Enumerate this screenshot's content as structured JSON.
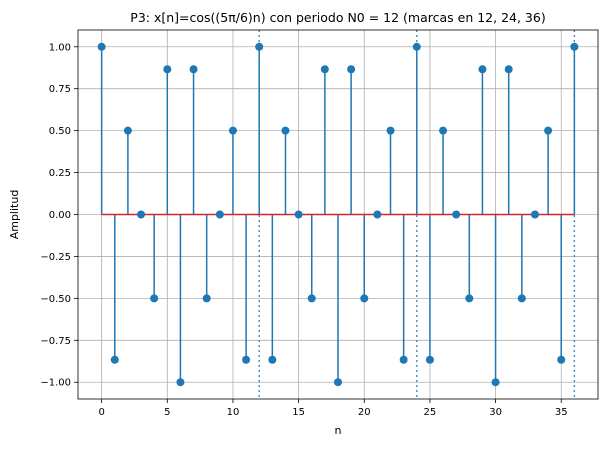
{
  "chart_data": {
    "type": "stem",
    "title": "P3: x[n]=cos((5π/6)n) con periodo N0 = 12 (marcas en 12, 24, 36)",
    "xlabel": "n",
    "ylabel": "Amplitud",
    "xlim": [
      -1.8,
      37.8
    ],
    "ylim": [
      -1.1,
      1.1
    ],
    "xticks": [
      0,
      5,
      10,
      15,
      20,
      25,
      30,
      35
    ],
    "xtick_labels": [
      "0",
      "5",
      "10",
      "15",
      "20",
      "25",
      "30",
      "35"
    ],
    "yticks": [
      1.0,
      0.75,
      0.5,
      0.25,
      0.0,
      -0.25,
      -0.5,
      -0.75,
      -1.0
    ],
    "ytick_labels": [
      "1.00",
      "0.75",
      "0.50",
      "0.25",
      "0.00",
      "−0.25",
      "−0.50",
      "−0.75",
      "−1.00"
    ],
    "grid": true,
    "period_markers": [
      12,
      24,
      36
    ],
    "colors": {
      "stem": "#1f77b4",
      "baseline": "#d62728",
      "grid": "#b0b0b0",
      "marker_line": "#1f77b4"
    },
    "n": [
      0,
      1,
      2,
      3,
      4,
      5,
      6,
      7,
      8,
      9,
      10,
      11,
      12,
      13,
      14,
      15,
      16,
      17,
      18,
      19,
      20,
      21,
      22,
      23,
      24,
      25,
      26,
      27,
      28,
      29,
      30,
      31,
      32,
      33,
      34,
      35,
      36
    ],
    "values": [
      1.0,
      -0.866,
      0.5,
      0.0,
      -0.5,
      0.866,
      -1.0,
      0.866,
      -0.5,
      0.0,
      0.5,
      -0.866,
      1.0,
      -0.866,
      0.5,
      0.0,
      -0.5,
      0.866,
      -1.0,
      0.866,
      -0.5,
      0.0,
      0.5,
      -0.866,
      1.0,
      -0.866,
      0.5,
      0.0,
      -0.5,
      0.866,
      -1.0,
      0.866,
      -0.5,
      0.0,
      0.5,
      -0.866,
      1.0
    ]
  }
}
